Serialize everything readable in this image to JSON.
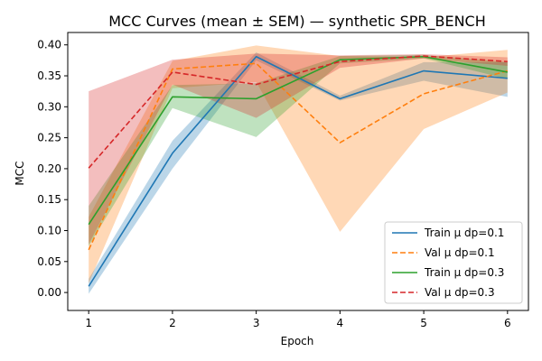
{
  "chart_data": {
    "type": "line",
    "title": "MCC Curves (mean ± SEM) — synthetic SPR_BENCH",
    "xlabel": "Epoch",
    "ylabel": "MCC",
    "x": [
      1,
      2,
      3,
      4,
      5,
      6
    ],
    "xlim": [
      0.75,
      6.25
    ],
    "ylim": [
      -0.029,
      0.42
    ],
    "xticks": [
      "1",
      "2",
      "3",
      "4",
      "5",
      "6"
    ],
    "yticks": [
      "0.00",
      "0.05",
      "0.10",
      "0.15",
      "0.20",
      "0.25",
      "0.30",
      "0.35",
      "0.40"
    ],
    "grid": false,
    "legend_position": "lower right",
    "series": [
      {
        "name": "Train μ dp=0.1",
        "color": "#1f77b4",
        "dash": "solid",
        "values": [
          0.01,
          0.225,
          0.381,
          0.313,
          0.358,
          0.346
        ],
        "lower": [
          -0.002,
          0.2,
          0.375,
          0.31,
          0.342,
          0.316
        ],
        "upper": [
          0.022,
          0.245,
          0.388,
          0.318,
          0.372,
          0.372
        ]
      },
      {
        "name": "Val μ dp=0.1",
        "color": "#ff7f0e",
        "dash": "dashed",
        "values": [
          0.069,
          0.361,
          0.37,
          0.242,
          0.321,
          0.358
        ],
        "lower": [
          0.015,
          0.33,
          0.34,
          0.098,
          0.264,
          0.323
        ],
        "upper": [
          0.122,
          0.374,
          0.399,
          0.382,
          0.38,
          0.392
        ]
      },
      {
        "name": "Train μ dp=0.3",
        "color": "#2ca02c",
        "dash": "solid",
        "values": [
          0.11,
          0.316,
          0.313,
          0.376,
          0.381,
          0.356
        ],
        "lower": [
          0.075,
          0.298,
          0.251,
          0.37,
          0.378,
          0.345
        ],
        "upper": [
          0.14,
          0.335,
          0.338,
          0.382,
          0.384,
          0.372
        ]
      },
      {
        "name": "Val μ dp=0.3",
        "color": "#d62728",
        "dash": "dashed",
        "values": [
          0.201,
          0.356,
          0.336,
          0.373,
          0.382,
          0.373
        ],
        "lower": [
          0.078,
          0.336,
          0.282,
          0.363,
          0.378,
          0.366
        ],
        "upper": [
          0.325,
          0.376,
          0.386,
          0.383,
          0.385,
          0.38
        ]
      }
    ]
  }
}
